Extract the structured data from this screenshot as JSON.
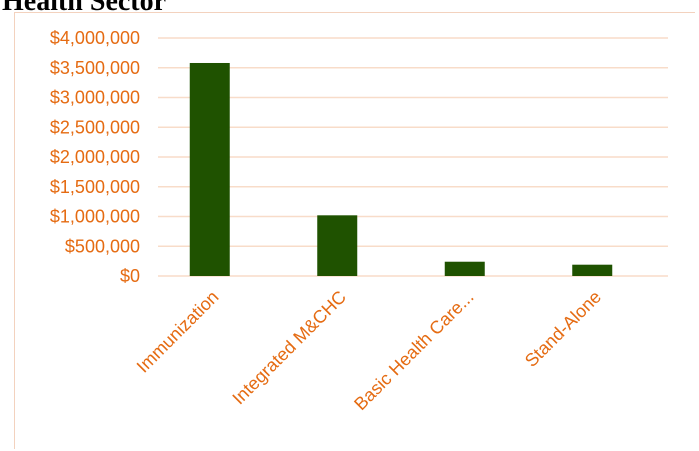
{
  "page": {
    "title": "Health Sector"
  },
  "colors": {
    "bar": "#1f5200",
    "axis_text": "#e56b12",
    "gridline": "#f8dcc9",
    "frame": "#f3d2be"
  },
  "chart_data": {
    "type": "bar",
    "title": "",
    "xlabel": "",
    "ylabel": "",
    "categories": [
      "Immunization",
      "Integrated M&CHC",
      "Basic Health Care...",
      "Stand-Alone"
    ],
    "values": [
      3580000,
      1020000,
      240000,
      190000
    ],
    "ylim": [
      0,
      4000000
    ],
    "y_ticks": [
      0,
      500000,
      1000000,
      1500000,
      2000000,
      2500000,
      3000000,
      3500000,
      4000000
    ],
    "y_tick_labels": [
      "$0",
      "$500,000",
      "$1,000,000",
      "$1,500,000",
      "$2,000,000",
      "$2,500,000",
      "$3,000,000",
      "$3,500,000",
      "$4,000,000"
    ],
    "grid": true,
    "legend": "none"
  }
}
